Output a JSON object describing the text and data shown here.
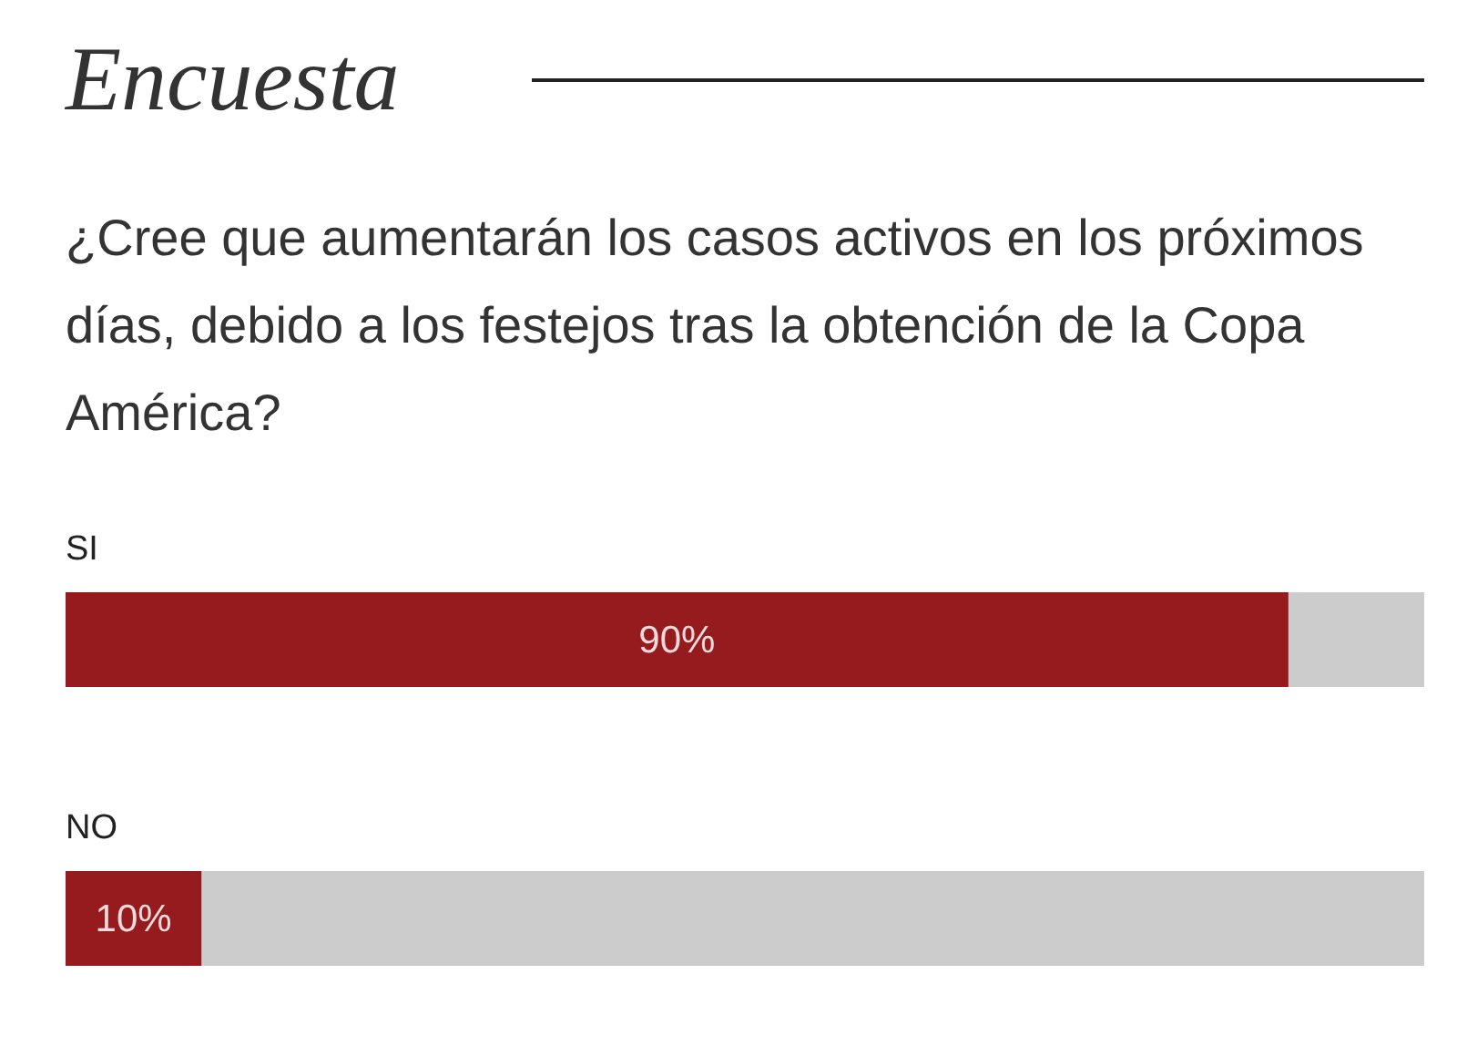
{
  "chart_data": {
    "type": "bar",
    "orientation": "horizontal",
    "title": "Encuesta",
    "subtitle": "¿Cree que aumentarán los casos activos en los próximos días, debido a los festejos tras la obtención de la Copa América?",
    "categories": [
      "SI",
      "NO"
    ],
    "values": [
      90,
      10
    ],
    "value_labels": [
      "90%",
      "10%"
    ],
    "color": "#951b1f",
    "xlim": [
      0,
      100
    ],
    "tick_labels": "y"
  }
}
